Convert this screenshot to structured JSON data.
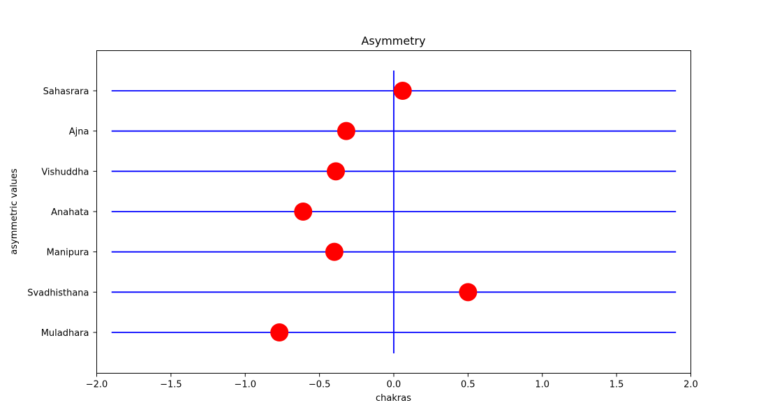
{
  "chart_data": {
    "type": "scatter",
    "title": "Asymmetry",
    "xlabel": "chakras",
    "ylabel": "asymmetric values",
    "xlim": [
      -2.0,
      2.0
    ],
    "xticks": [
      "−2.0",
      "−1.5",
      "−1.0",
      "−0.5",
      "0.0",
      "0.5",
      "1.0",
      "1.5",
      "2.0"
    ],
    "xtick_values": [
      -2.0,
      -1.5,
      -1.0,
      -0.5,
      0.0,
      0.5,
      1.0,
      1.5,
      2.0
    ],
    "categories": [
      "Muladhara",
      "Svadhisthana",
      "Manipura",
      "Anahata",
      "Vishuddha",
      "Ajna",
      "Sahasrara"
    ],
    "values": [
      -0.77,
      0.5,
      -0.4,
      -0.61,
      -0.39,
      -0.32,
      0.06
    ],
    "hlines_xrange": [
      -1.9,
      1.9
    ],
    "vline_x": 0.0,
    "colors": {
      "points": "#ff0000",
      "lines": "#0000ff"
    },
    "grid": false
  }
}
